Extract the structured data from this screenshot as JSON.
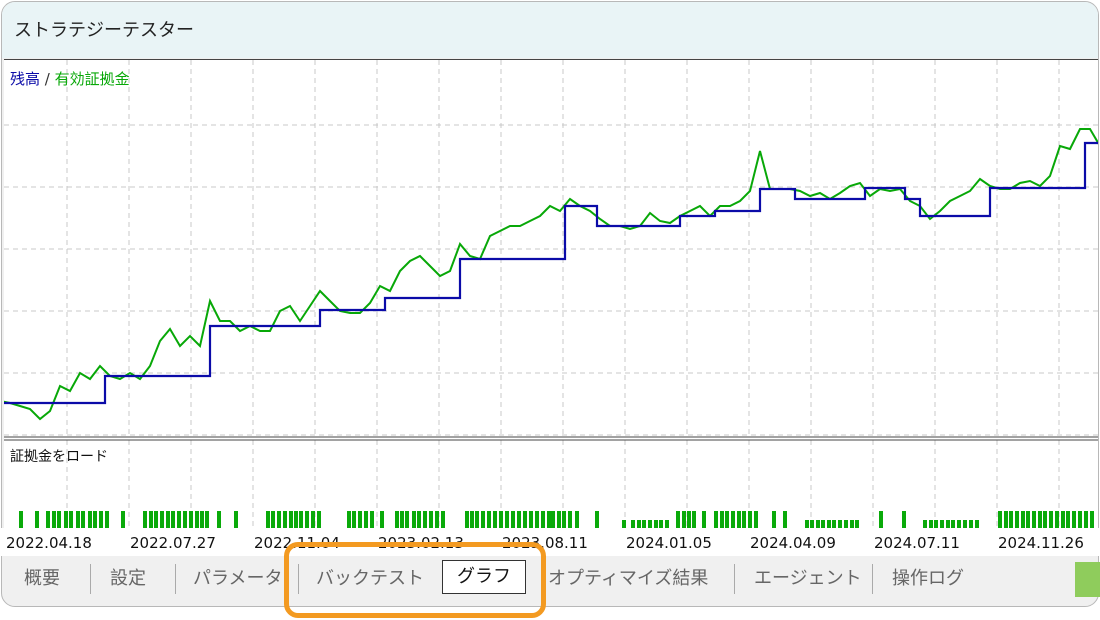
{
  "window": {
    "title": "ストラテジーテスター"
  },
  "legend": {
    "balance": "残高",
    "slash": "/",
    "equity": "有効証拠金"
  },
  "colors": {
    "balance": "#0b0ba8",
    "equity": "#08a808",
    "load": "#0aaa0a",
    "highlight": "#f39a21",
    "grid": "#c8c8c8"
  },
  "load_panel": {
    "label": "証拠金をロード"
  },
  "chart_data": {
    "type": "line",
    "x_tick_labels": [
      "2022.04.18",
      "2022.07.27",
      "2022.11.04",
      "2023.02.13",
      "2023.08.11",
      "2024.01.05",
      "2024.04.09",
      "2024.07.11",
      "2024.11.26"
    ],
    "grid": true,
    "series": [
      {
        "name": "有効証拠金",
        "values": [
          35,
          33,
          30,
          27,
          17,
          25,
          50,
          45,
          63,
          57,
          70,
          60,
          57,
          63,
          57,
          70,
          95,
          107,
          90,
          100,
          90,
          135,
          115,
          115,
          105,
          110,
          105,
          105,
          125,
          130,
          115,
          130,
          145,
          135,
          125,
          123,
          123,
          133,
          150,
          145,
          165,
          175,
          180,
          170,
          160,
          165,
          192,
          180,
          177,
          200,
          205,
          210,
          210,
          215,
          220,
          230,
          225,
          237,
          230,
          225,
          217,
          210,
          210,
          207,
          210,
          223,
          215,
          213,
          220,
          225,
          230,
          220,
          230,
          230,
          235,
          245,
          285,
          247,
          247,
          247,
          245,
          240,
          243,
          237,
          243,
          250,
          253,
          240,
          247,
          245,
          247,
          235,
          230,
          217,
          225,
          235,
          240,
          245,
          257,
          250,
          247,
          247,
          253,
          255,
          250,
          260,
          290,
          287,
          307,
          307,
          290
        ]
      },
      {
        "name": "残高",
        "steps": [
          [
            0,
            33
          ],
          [
            10.5,
            60
          ],
          [
            21,
            110
          ],
          [
            24.2,
            110
          ],
          [
            32,
            126
          ],
          [
            38.5,
            138
          ],
          [
            46,
            177
          ],
          [
            56.5,
            230
          ],
          [
            59.7,
            210
          ],
          [
            68,
            220
          ],
          [
            71.5,
            225
          ],
          [
            76,
            247
          ],
          [
            79.5,
            237
          ],
          [
            86.5,
            248
          ],
          [
            90.5,
            237
          ],
          [
            92,
            220
          ],
          [
            99,
            248
          ],
          [
            108.5,
            293
          ],
          [
            110,
            293
          ]
        ]
      }
    ],
    "load_bars": [
      [
        20,
        2
      ],
      [
        36,
        2
      ],
      [
        47,
        2
      ],
      [
        53,
        2
      ],
      [
        58,
        2
      ],
      [
        65,
        2
      ],
      [
        70,
        2
      ],
      [
        77,
        2
      ],
      [
        82,
        2
      ],
      [
        89,
        2
      ],
      [
        94,
        2
      ],
      [
        100,
        2
      ],
      [
        106,
        2
      ],
      [
        122,
        2
      ],
      [
        144,
        2
      ],
      [
        150,
        2
      ],
      [
        155,
        2
      ],
      [
        161,
        2
      ],
      [
        167,
        2
      ],
      [
        172,
        2
      ],
      [
        178,
        2
      ],
      [
        184,
        2
      ],
      [
        190,
        2
      ],
      [
        196,
        2
      ],
      [
        201,
        2
      ],
      [
        206,
        2
      ],
      [
        218,
        2
      ],
      [
        235,
        2
      ],
      [
        267,
        2
      ],
      [
        272,
        2
      ],
      [
        278,
        2
      ],
      [
        284,
        2
      ],
      [
        290,
        2
      ],
      [
        295,
        2
      ],
      [
        300,
        2
      ],
      [
        306,
        2
      ],
      [
        312,
        2
      ],
      [
        318,
        2
      ],
      [
        348,
        2
      ],
      [
        353,
        2
      ],
      [
        359,
        2
      ],
      [
        365,
        2
      ],
      [
        371,
        2
      ],
      [
        381,
        2
      ],
      [
        396,
        2
      ],
      [
        401,
        2
      ],
      [
        406,
        2
      ],
      [
        413,
        2
      ],
      [
        418,
        2
      ],
      [
        424,
        2
      ],
      [
        430,
        2
      ],
      [
        436,
        2
      ],
      [
        442,
        2
      ],
      [
        466,
        2
      ],
      [
        471,
        2
      ],
      [
        476,
        2
      ],
      [
        482,
        2
      ],
      [
        488,
        2
      ],
      [
        494,
        2
      ],
      [
        500,
        2
      ],
      [
        506,
        2
      ],
      [
        512,
        2
      ],
      [
        518,
        2
      ],
      [
        524,
        2
      ],
      [
        530,
        2
      ],
      [
        536,
        2
      ],
      [
        542,
        2
      ],
      [
        548,
        2
      ],
      [
        552,
        2
      ],
      [
        558,
        2
      ],
      [
        563,
        2
      ],
      [
        569,
        2
      ],
      [
        576,
        2
      ],
      [
        596,
        2
      ],
      [
        623,
        1
      ],
      [
        632,
        1
      ],
      [
        638,
        1
      ],
      [
        643,
        1
      ],
      [
        649,
        1
      ],
      [
        655,
        1
      ],
      [
        660,
        1
      ],
      [
        666,
        1
      ],
      [
        677,
        2
      ],
      [
        683,
        2
      ],
      [
        688,
        2
      ],
      [
        693,
        2
      ],
      [
        703,
        2
      ],
      [
        715,
        2
      ],
      [
        721,
        2
      ],
      [
        726,
        2
      ],
      [
        732,
        2
      ],
      [
        738,
        2
      ],
      [
        743,
        2
      ],
      [
        749,
        2
      ],
      [
        755,
        2
      ],
      [
        773,
        2
      ],
      [
        784,
        2
      ],
      [
        806,
        1
      ],
      [
        811,
        1
      ],
      [
        817,
        1
      ],
      [
        822,
        1
      ],
      [
        828,
        1
      ],
      [
        833,
        1
      ],
      [
        839,
        1
      ],
      [
        845,
        1
      ],
      [
        851,
        1
      ],
      [
        856,
        1
      ],
      [
        880,
        2
      ],
      [
        903,
        2
      ],
      [
        924,
        1
      ],
      [
        930,
        1
      ],
      [
        935,
        1
      ],
      [
        941,
        1
      ],
      [
        947,
        1
      ],
      [
        952,
        1
      ],
      [
        958,
        1
      ],
      [
        964,
        1
      ],
      [
        970,
        1
      ],
      [
        976,
        1
      ],
      [
        999,
        2
      ],
      [
        1005,
        2
      ],
      [
        1010,
        2
      ],
      [
        1016,
        2
      ],
      [
        1022,
        2
      ],
      [
        1027,
        2
      ],
      [
        1033,
        2
      ],
      [
        1039,
        2
      ],
      [
        1044,
        2
      ],
      [
        1050,
        2
      ],
      [
        1056,
        2
      ],
      [
        1062,
        2
      ],
      [
        1067,
        2
      ],
      [
        1073,
        2
      ],
      [
        1079,
        2
      ],
      [
        1085,
        2
      ],
      [
        1091,
        2
      ]
    ]
  },
  "tabs": [
    {
      "label": "概要"
    },
    {
      "label": "設定"
    },
    {
      "label": "パラメータ"
    },
    {
      "label": "バックテスト"
    },
    {
      "label": "グラフ",
      "active": true
    },
    {
      "label": "オプティマイズ結果"
    },
    {
      "label": "エージェント"
    },
    {
      "label": "操作ログ"
    }
  ]
}
